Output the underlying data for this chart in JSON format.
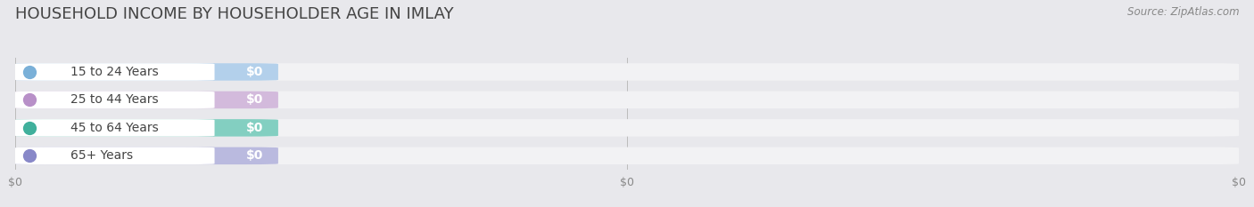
{
  "title": "HOUSEHOLD INCOME BY HOUSEHOLDER AGE IN IMLAY",
  "source": "Source: ZipAtlas.com",
  "categories": [
    "15 to 24 Years",
    "25 to 44 Years",
    "45 to 64 Years",
    "65+ Years"
  ],
  "values": [
    0,
    0,
    0,
    0
  ],
  "bar_colors": [
    "#9ec5e8",
    "#c9a8d4",
    "#5ec4b0",
    "#a8a8d8"
  ],
  "dot_colors": [
    "#7ab0d8",
    "#b890c8",
    "#40b09c",
    "#8888c8"
  ],
  "background_color": "#e8e8ec",
  "bar_bg_color": "#f2f2f4",
  "title_color": "#444444",
  "source_color": "#888888",
  "label_color": "#444444",
  "value_color": "#ffffff",
  "tick_color": "#888888",
  "title_fontsize": 13,
  "source_fontsize": 8.5,
  "label_fontsize": 10,
  "value_fontsize": 10,
  "tick_fontsize": 9,
  "figsize": [
    14.06,
    2.33
  ],
  "dpi": 100,
  "xtick_positions": [
    0.0,
    0.5,
    1.0
  ],
  "xtick_labels": [
    "$0",
    "$0",
    "$0"
  ]
}
